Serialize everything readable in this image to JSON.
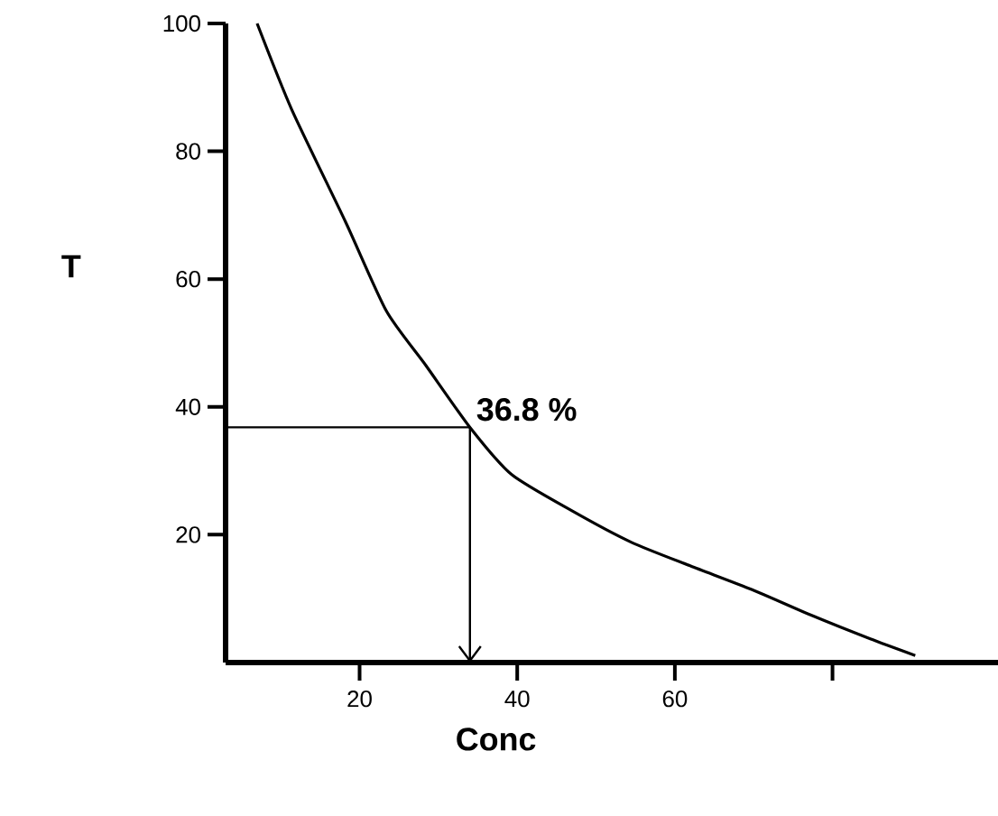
{
  "chart_data": {
    "type": "line",
    "xlabel": "Conc",
    "ylabel": "T",
    "x": [
      7,
      11.4,
      18.2,
      23.4,
      28.4,
      34,
      39.3,
      47,
      54.5,
      62,
      69.8,
      77.3,
      84.8,
      90.5
    ],
    "values": [
      100,
      86.5,
      69,
      55,
      46.5,
      36.8,
      29.4,
      23.7,
      18.8,
      15.1,
      11.4,
      7.4,
      3.7,
      1.1
    ],
    "color": "#000000",
    "marker": "none",
    "line_style": "solid",
    "xlim": [
      3,
      101
    ],
    "ylim": [
      0,
      100
    ],
    "xticks": [
      20,
      40,
      60,
      {
        "value": 80,
        "label": null
      }
    ],
    "yticks": [
      20,
      40,
      60,
      80,
      100
    ],
    "annotations": [
      {
        "text": "36.8  %",
        "x": 34,
        "y": 36.8
      }
    ]
  }
}
